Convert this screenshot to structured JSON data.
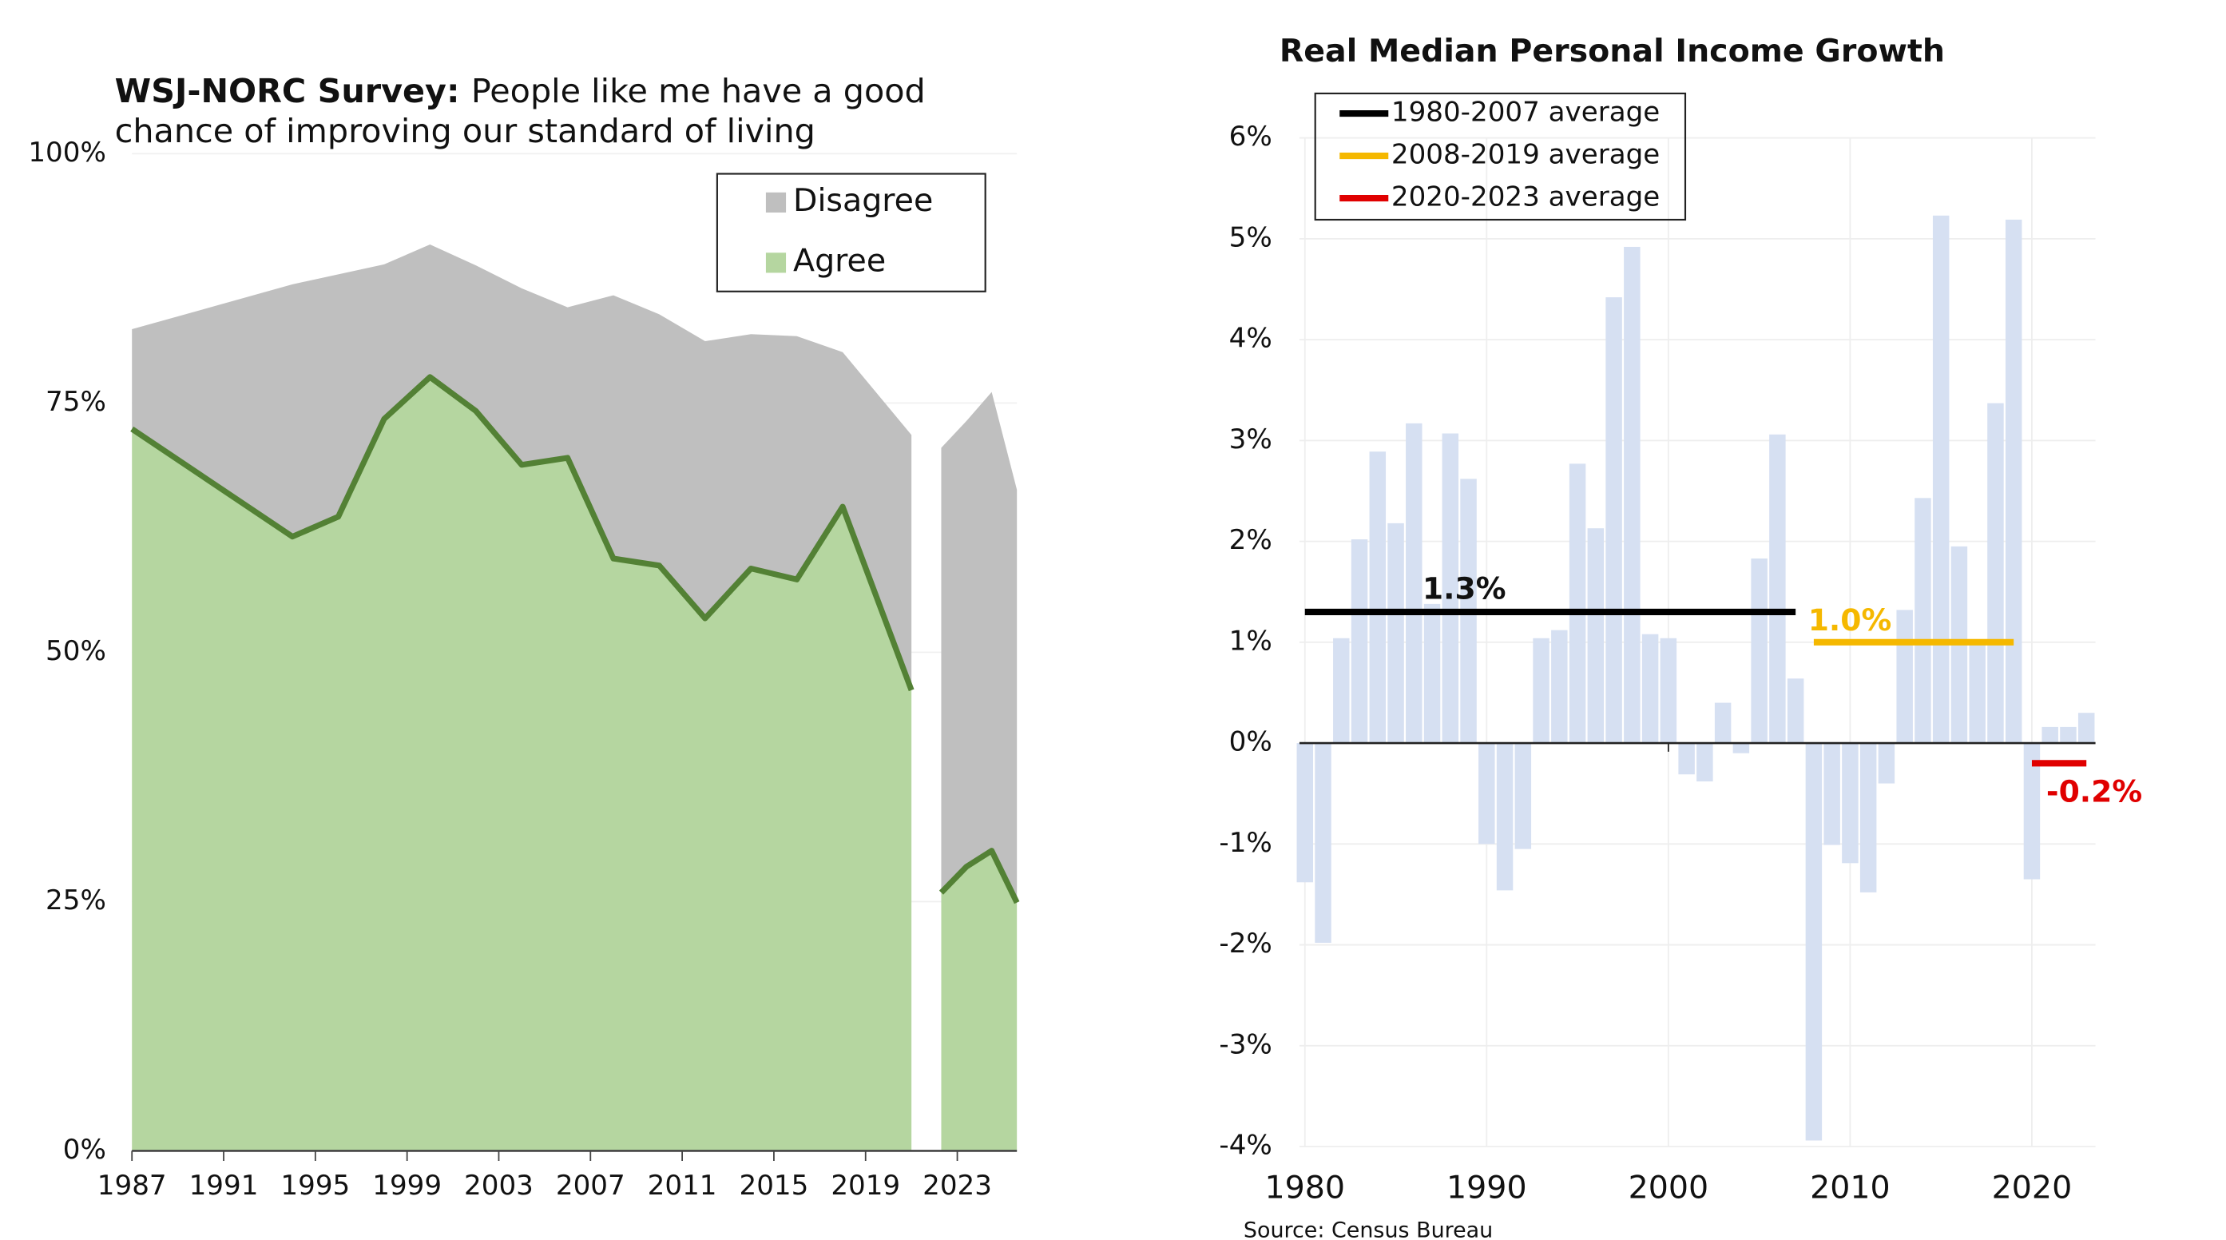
{
  "chart_data": [
    {
      "type": "area",
      "title": "WSJ-NORC Survey:",
      "subtitle": [
        "People like me have a good",
        "chance of improving our standard of living"
      ],
      "x": [
        1987,
        1994,
        1996,
        1998,
        2000,
        2002,
        2004,
        2006,
        2008,
        2010,
        2012,
        2014,
        2016,
        2018,
        2021,
        null,
        2022.3,
        2023.4,
        2024.5,
        2025.6
      ],
      "series": [
        {
          "name": "Agree",
          "color": "#b5d6a0",
          "line_color": "#538135",
          "values": [
            72.4,
            61.6,
            63.6,
            73.4,
            77.6,
            74.2,
            68.8,
            69.5,
            59.4,
            58.7,
            53.4,
            58.4,
            57.3,
            64.6,
            46.2,
            null,
            25.9,
            28.5,
            30.1,
            24.9
          ]
        },
        {
          "name": "Disagree",
          "color": "#bfbfbf",
          "values": [
            10.0,
            25.3,
            24.3,
            15.5,
            13.3,
            14.6,
            17.7,
            15.1,
            26.4,
            25.2,
            27.8,
            23.5,
            24.4,
            15.5,
            25.6,
            null,
            44.6,
            44.7,
            46.0,
            41.4
          ]
        }
      ],
      "xlim": [
        1987,
        2025.6
      ],
      "xticks": [
        1987,
        1991,
        1995,
        1999,
        2003,
        2007,
        2011,
        2015,
        2019,
        2023
      ],
      "ylim": [
        0,
        100
      ],
      "yticks": [
        {
          "value": 0,
          "label": "0%"
        },
        {
          "value": 25,
          "label": "25%"
        },
        {
          "value": 50,
          "label": "50%"
        },
        {
          "value": 75,
          "label": "75%"
        },
        {
          "value": 100,
          "label": "100%"
        }
      ],
      "legend": "upper right",
      "stacked": true
    },
    {
      "type": "bar",
      "title": "Real Median Personal Income Growth",
      "color": "#d6e0f2",
      "x": [
        1980,
        1981,
        1982,
        1983,
        1984,
        1985,
        1986,
        1987,
        1988,
        1989,
        1990,
        1991,
        1992,
        1993,
        1994,
        1995,
        1996,
        1997,
        1998,
        1999,
        2000,
        2001,
        2002,
        2003,
        2004,
        2005,
        2006,
        2007,
        2008,
        2009,
        2010,
        2011,
        2012,
        2013,
        2014,
        2015,
        2016,
        2017,
        2018,
        2019,
        2020,
        2021,
        2022,
        2023
      ],
      "values": [
        -1.38,
        -1.98,
        1.04,
        2.02,
        2.89,
        2.18,
        3.17,
        1.38,
        3.07,
        2.62,
        -1.0,
        -1.46,
        -1.05,
        1.04,
        1.12,
        2.77,
        2.13,
        4.42,
        4.92,
        1.08,
        1.04,
        -0.31,
        -0.38,
        0.4,
        -0.1,
        1.83,
        3.06,
        0.64,
        -3.94,
        -1.01,
        -1.19,
        -1.48,
        -0.4,
        1.32,
        2.43,
        5.23,
        1.95,
        0.98,
        3.37,
        5.19,
        -1.35,
        0.16,
        0.16,
        0.3
      ],
      "averages": [
        {
          "name": "1980-2007 average",
          "color": "#000000",
          "value": 1.3,
          "value_label": "1.3%",
          "start": 1980,
          "end": 2007
        },
        {
          "name": "2008-2019 average",
          "color": "#f5b800",
          "value": 1.0,
          "value_label": "1.0%",
          "start": 2008,
          "end": 2019
        },
        {
          "name": "2020-2023 average",
          "color": "#e00000",
          "value": -0.2,
          "value_label": "-0.2%",
          "start": 2020,
          "end": 2023
        }
      ],
      "xlim": [
        1979.7,
        2023.5
      ],
      "xticks": [
        1980,
        1990,
        2000,
        2010,
        2020
      ],
      "ylim": [
        -4,
        6
      ],
      "yticks": [
        {
          "value": -4,
          "label": "-4%"
        },
        {
          "value": -3,
          "label": "-3%"
        },
        {
          "value": -2,
          "label": "-2%"
        },
        {
          "value": -1,
          "label": "-1%"
        },
        {
          "value": 0,
          "label": "0%"
        },
        {
          "value": 1,
          "label": "1%"
        },
        {
          "value": 2,
          "label": "2%"
        },
        {
          "value": 3,
          "label": "3%"
        },
        {
          "value": 4,
          "label": "4%"
        },
        {
          "value": 5,
          "label": "5%"
        },
        {
          "value": 6,
          "label": "6%"
        }
      ],
      "grid": true,
      "legend": "upper left",
      "source": "Source: Census Bureau"
    }
  ]
}
